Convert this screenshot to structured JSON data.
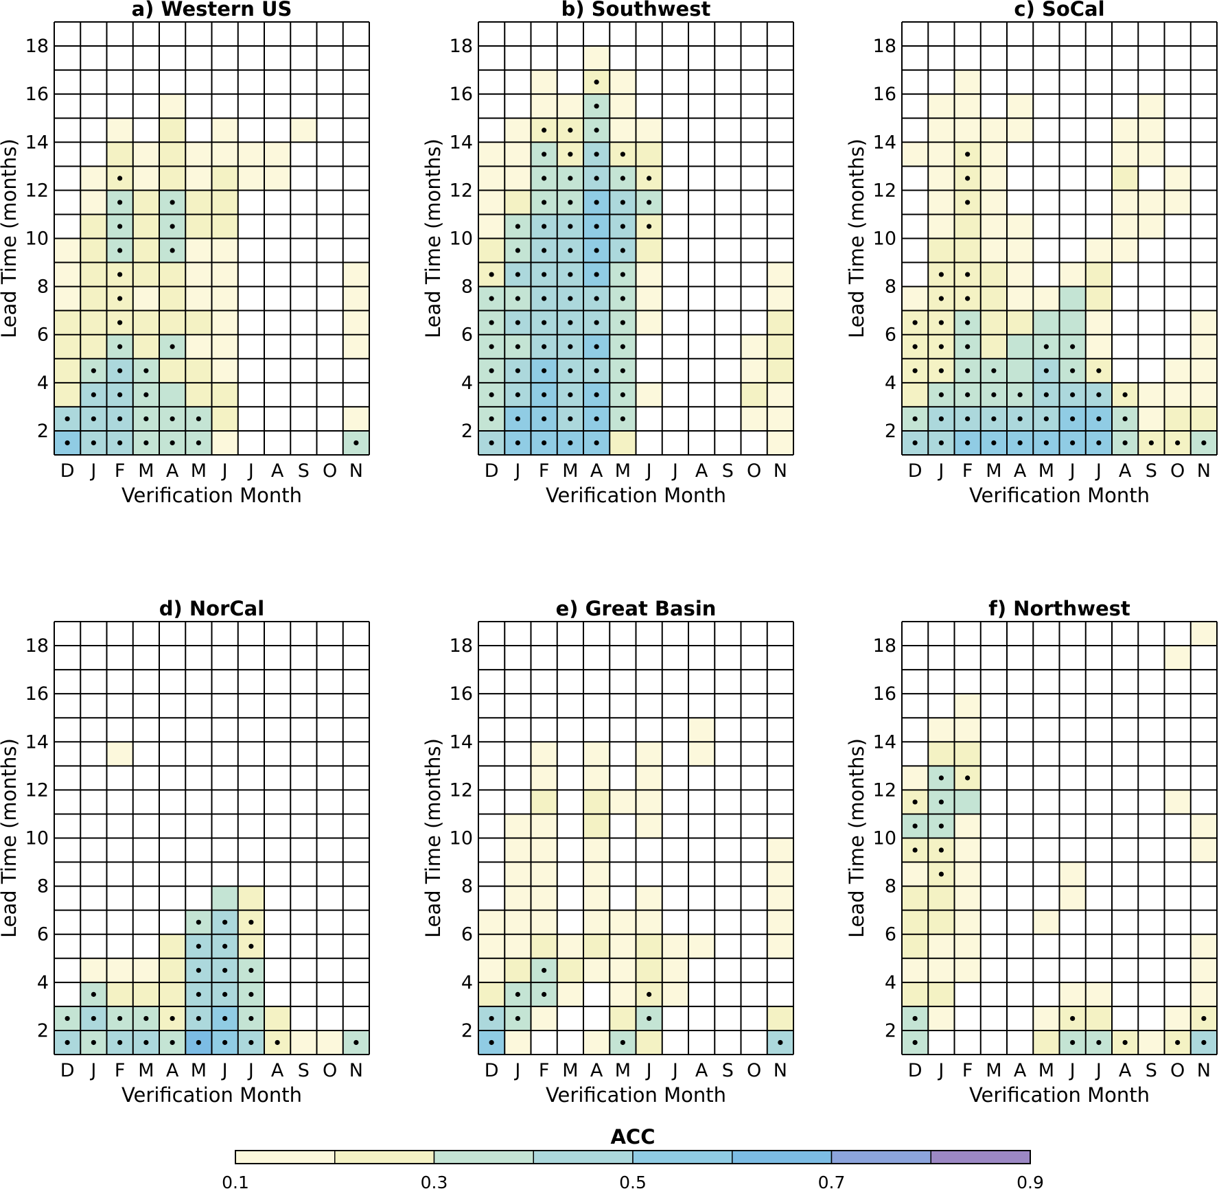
{
  "colorbar": {
    "label": "ACC",
    "boundaries": [
      0.1,
      0.2,
      0.3,
      0.4,
      0.5,
      0.6,
      0.7,
      0.8,
      0.9
    ],
    "tick_labels": [
      "0.1",
      "0.3",
      "0.5",
      "0.7",
      "0.9"
    ],
    "colors": [
      "#fcf8dc",
      "#f4f2c4",
      "#c4e4d4",
      "#acd8dc",
      "#90cce4",
      "#7cbce4",
      "#8ca4dc",
      "#9c88c4"
    ]
  },
  "chart_data": [
    {
      "type": "heatmap",
      "title": "a) Western US",
      "xlabel": "Verification Month",
      "ylabel": "Lead Time (months)",
      "x_categories": [
        "D",
        "J",
        "F",
        "M",
        "A",
        "M",
        "J",
        "J",
        "A",
        "S",
        "O",
        "N"
      ],
      "y_ticks": [
        2,
        4,
        6,
        8,
        10,
        12,
        14,
        16,
        18
      ],
      "ylim": [
        1,
        19
      ],
      "leads": [
        18,
        17,
        16,
        15,
        14,
        13,
        12,
        11,
        10,
        9,
        8,
        7,
        6,
        5,
        4,
        3,
        2,
        1
      ],
      "acc_bin_rows": [
        "000000000000",
        "000000000000",
        "000000000000",
        "000010000000",
        "001020100100",
        "002121111000",
        "012121211000",
        "013232200000",
        "023232200000",
        "123231100000",
        "122221100001",
        "122121100001",
        "222222100001",
        "223231100001",
        "234322100000",
        "244332200000",
        "444333200001",
        "544333100003"
      ],
      "significance_rows": [
        "000000000000",
        "000000000000",
        "000000000000",
        "000000000000",
        "000000000000",
        "000000000000",
        "001000000000",
        "001010000000",
        "001010000000",
        "001010000000",
        "001000000000",
        "001000000000",
        "001000000000",
        "001010000000",
        "011100000000",
        "011100000000",
        "111111000000",
        "111111000001"
      ]
    },
    {
      "type": "heatmap",
      "title": "b) Southwest",
      "xlabel": "Verification Month",
      "ylabel": "Lead Time (months)",
      "x_categories": [
        "D",
        "J",
        "F",
        "M",
        "A",
        "M",
        "J",
        "J",
        "A",
        "S",
        "O",
        "N"
      ],
      "y_ticks": [
        2,
        4,
        6,
        8,
        10,
        12,
        14,
        16,
        18
      ],
      "ylim": [
        1,
        19
      ],
      "leads": [
        18,
        17,
        16,
        15,
        14,
        13,
        12,
        11,
        10,
        9,
        8,
        7,
        6,
        5,
        4,
        3,
        2,
        1
      ],
      "acc_bin_rows": [
        "000000000000",
        "000010000000",
        "001021000000",
        "001131000000",
        "012231100000",
        "113242200000",
        "113343200000",
        "123354300000",
        "134454200000",
        "234454200000",
        "244453100001",
        "334443100001",
        "344443100002",
        "334453000012",
        "345443000012",
        "345453100021",
        "355453000011",
        "455552000001"
      ],
      "significance_rows": [
        "000000000000",
        "000000000000",
        "000010000000",
        "000010000000",
        "001110000000",
        "001111000000",
        "001111100000",
        "001111100000",
        "011111100000",
        "011111000000",
        "111111000000",
        "111111000000",
        "111111000000",
        "111111000000",
        "111111000000",
        "111111000000",
        "111111000000",
        "111110000000"
      ]
    },
    {
      "type": "heatmap",
      "title": "c) SoCal",
      "xlabel": "Verification Month",
      "ylabel": "Lead Time (months)",
      "x_categories": [
        "D",
        "J",
        "F",
        "M",
        "A",
        "M",
        "J",
        "J",
        "A",
        "S",
        "O",
        "N"
      ],
      "y_ticks": [
        2,
        4,
        6,
        8,
        10,
        12,
        14,
        16,
        18
      ],
      "ylim": [
        1,
        19
      ],
      "leads": [
        18,
        17,
        16,
        15,
        14,
        13,
        12,
        11,
        10,
        9,
        8,
        7,
        6,
        5,
        4,
        3,
        2,
        1
      ],
      "acc_bin_rows": [
        "000000000000",
        "000000000000",
        "001000000000",
        "011010000100",
        "011110001100",
        "112100001100",
        "012100002010",
        "012100001110",
        "012110001100",
        "022110011000",
        "022210120000",
        "122211320000",
        "223223310001",
        "223233310001",
        "223334320011",
        "233334442111",
        "344444553122",
        "445555553223"
      ],
      "significance_rows": [
        "000000000000",
        "000000000000",
        "000000000000",
        "000000000000",
        "000000000000",
        "001000000000",
        "001000000000",
        "001000000000",
        "000000000000",
        "000000000000",
        "011000000000",
        "011000000000",
        "111000000000",
        "111001100000",
        "111101110000",
        "011111111000",
        "111111111000",
        "111111111111"
      ]
    },
    {
      "type": "heatmap",
      "title": "d) NorCal",
      "xlabel": "Verification Month",
      "ylabel": "Lead Time (months)",
      "x_categories": [
        "D",
        "J",
        "F",
        "M",
        "A",
        "M",
        "J",
        "J",
        "A",
        "S",
        "O",
        "N"
      ],
      "y_ticks": [
        2,
        4,
        6,
        8,
        10,
        12,
        14,
        16,
        18
      ],
      "ylim": [
        1,
        19
      ],
      "leads": [
        18,
        17,
        16,
        15,
        14,
        13,
        12,
        11,
        10,
        9,
        8,
        7,
        6,
        5,
        4,
        3,
        2,
        1
      ],
      "acc_bin_rows": [
        "000000000000",
        "000000000000",
        "000000000000",
        "000000000000",
        "000000000000",
        "001000000000",
        "000000000000",
        "000000000000",
        "000000000000",
        "000000000000",
        "000000000000",
        "000000320000",
        "000003420000",
        "000024420000",
        "011124430000",
        "032224430000",
        "343324532000",
        "434436542113"
      ],
      "significance_rows": [
        "000000000000",
        "000000000000",
        "000000000000",
        "000000000000",
        "000000000000",
        "000000000000",
        "000000000000",
        "000000000000",
        "000000000000",
        "000000000000",
        "000000000000",
        "000000000000",
        "000001110000",
        "000001110000",
        "000001110000",
        "010001110000",
        "111111110000",
        "111111111001"
      ]
    },
    {
      "type": "heatmap",
      "title": "e) Great Basin",
      "xlabel": "Verification Month",
      "ylabel": "Lead Time (months)",
      "x_categories": [
        "D",
        "J",
        "F",
        "M",
        "A",
        "M",
        "J",
        "J",
        "A",
        "S",
        "O",
        "N"
      ],
      "y_ticks": [
        2,
        4,
        6,
        8,
        10,
        12,
        14,
        16,
        18
      ],
      "ylim": [
        1,
        19
      ],
      "leads": [
        18,
        17,
        16,
        15,
        14,
        13,
        12,
        11,
        10,
        9,
        8,
        7,
        6,
        5,
        4,
        3,
        2,
        1
      ],
      "acc_bin_rows": [
        "000000000000",
        "000000000000",
        "000000000000",
        "000000000000",
        "000000001000",
        "001010101000",
        "001010100000",
        "002021100000",
        "011020100000",
        "011010000001",
        "011010000001",
        "011010100001",
        "111011100001",
        "112121211001",
        "123211210000",
        "233101210000",
        "431002300002",
        "510013200004"
      ],
      "significance_rows": [
        "000000000000",
        "000000000000",
        "000000000000",
        "000000000000",
        "000000000000",
        "000000000000",
        "000000000000",
        "000000000000",
        "000000000000",
        "000000000000",
        "000000000000",
        "000000000000",
        "000000000000",
        "000000000000",
        "001000000000",
        "011000100000",
        "110000100000",
        "100001000001"
      ]
    },
    {
      "type": "heatmap",
      "title": "f) Northwest",
      "xlabel": "Verification Month",
      "ylabel": "Lead Time (months)",
      "x_categories": [
        "D",
        "J",
        "F",
        "M",
        "A",
        "M",
        "J",
        "J",
        "A",
        "S",
        "O",
        "N"
      ],
      "y_ticks": [
        2,
        4,
        6,
        8,
        10,
        12,
        14,
        16,
        18
      ],
      "ylim": [
        1,
        19
      ],
      "leads": [
        18,
        17,
        16,
        15,
        14,
        13,
        12,
        11,
        10,
        9,
        8,
        7,
        6,
        5,
        4,
        3,
        2,
        1
      ],
      "acc_bin_rows": [
        "000000000001",
        "000000000010",
        "000000000000",
        "001000000000",
        "011000000000",
        "022000000000",
        "132000000000",
        "233000000010",
        "331000000001",
        "221000000001",
        "121000100000",
        "221000100000",
        "221001000000",
        "211000000001",
        "111000000001",
        "220000110001",
        "310001220012",
        "300002332124"
      ],
      "significance_rows": [
        "000000000000",
        "000000000000",
        "000000000000",
        "000000000000",
        "000000000000",
        "000000000000",
        "011000000000",
        "110000000000",
        "110000000000",
        "110000000000",
        "010000000000",
        "000000000000",
        "000000000000",
        "000000000000",
        "000000000000",
        "000000000000",
        "100000100001",
        "100000111011"
      ]
    }
  ]
}
